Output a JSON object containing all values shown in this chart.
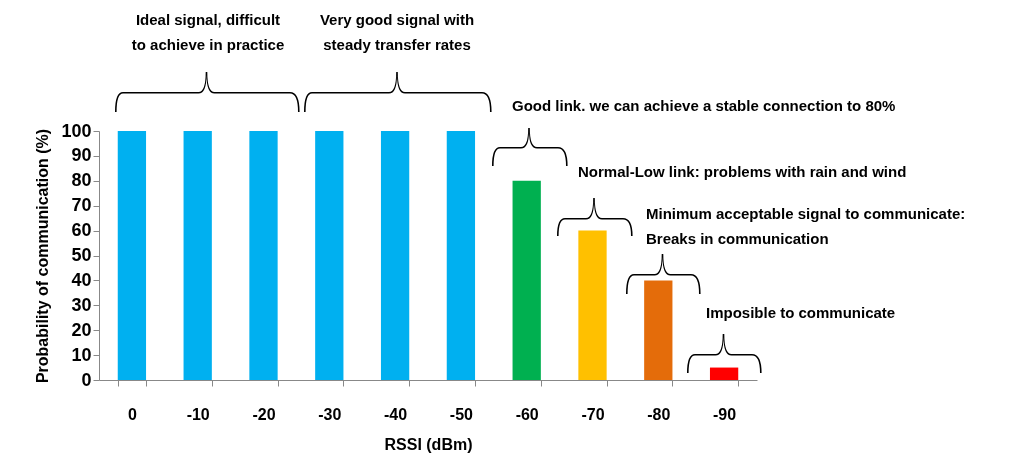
{
  "chart_data": {
    "type": "bar",
    "xlabel": "RSSI (dBm)",
    "ylabel": "Probability of communication (%)",
    "categories": [
      "0",
      "-10",
      "-20",
      "-30",
      "-40",
      "-50",
      "-60",
      "-70",
      "-80",
      "-90"
    ],
    "values": [
      100,
      100,
      100,
      100,
      100,
      100,
      80,
      60,
      40,
      5
    ],
    "colors": [
      "#00b0f0",
      "#00b0f0",
      "#00b0f0",
      "#00b0f0",
      "#00b0f0",
      "#00b0f0",
      "#00b050",
      "#ffc000",
      "#e46c0a",
      "#ff0000"
    ],
    "ylim": [
      0,
      100
    ],
    "yticks": [
      0,
      10,
      20,
      30,
      40,
      50,
      60,
      70,
      80,
      90,
      100
    ],
    "grid": false,
    "annotations": [
      "Ideal signal, difficult\nto achieve in practice",
      "Very good signal with\nsteady transfer rates",
      "Good link.  we can achieve a stable connection  to 80%",
      "Normal-Low link: problems   with rain and wind",
      "Minimum acceptable signal to communicate:\nBreaks in communication",
      "Imposible to communicate"
    ]
  }
}
